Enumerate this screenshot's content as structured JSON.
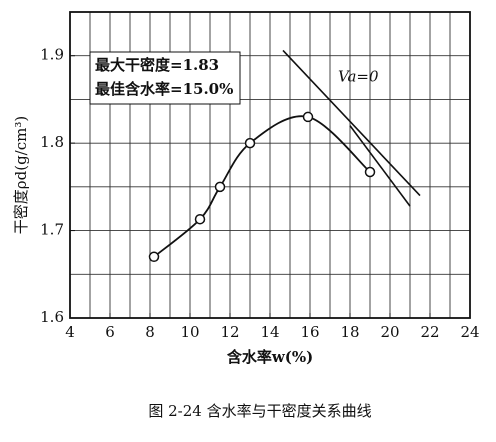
{
  "chart_data": {
    "type": "line",
    "xlabel": "含水率w(%)",
    "ylabel": "干密度ρd(g/cm³)",
    "caption": "图 2-24   含水率与干密度关系曲线",
    "x": [
      8.2,
      10.5,
      11.5,
      13,
      15.9,
      19
    ],
    "series": [
      {
        "color": "#111111",
        "values": [
          1.67,
          1.713,
          1.75,
          1.8,
          1.83,
          1.767
        ]
      }
    ],
    "xlim": [
      4,
      24
    ],
    "xticks": [
      4,
      6,
      8,
      10,
      12,
      14,
      16,
      18,
      20,
      22,
      24
    ],
    "ylim": [
      1.6,
      1.95
    ],
    "yticks": [
      1.6,
      1.7,
      1.8,
      1.9
    ],
    "grid": true,
    "x_grid_step": 1,
    "y_grid_step": 0.05,
    "annotations": [
      "最大干密度=1.83",
      "最佳含水率=15.0%"
    ],
    "saturation_label": {
      "text": "Va=0",
      "x": 17.4,
      "y": 1.875
    },
    "saturation_lines": [
      {
        "x": [
          14.65,
          21.5
        ],
        "y": [
          1.906,
          1.74
        ]
      },
      {
        "x": [
          18,
          21
        ],
        "y": [
          1.82,
          1.728
        ]
      }
    ]
  }
}
